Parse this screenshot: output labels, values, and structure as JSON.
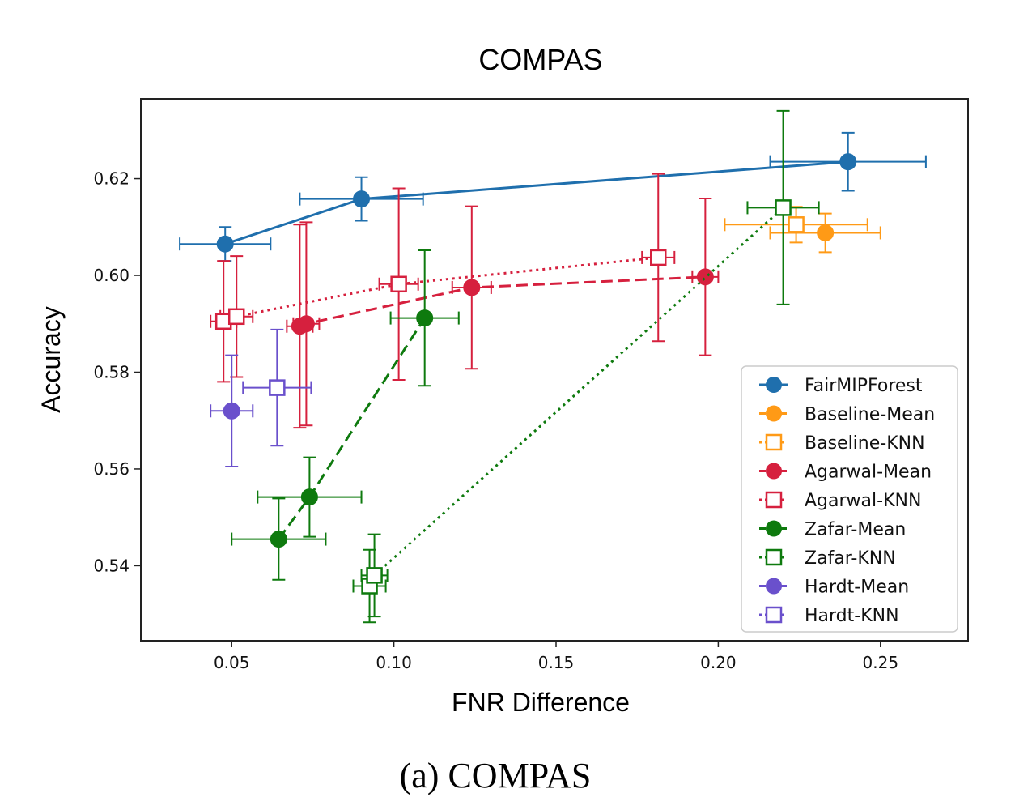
{
  "caption": "(a) COMPAS",
  "chart_data": {
    "type": "scatter",
    "title": "COMPAS",
    "xlabel": "FNR Difference",
    "ylabel": "Accuracy",
    "xlim": [
      0.022,
      0.277
    ],
    "ylim": [
      0.5245,
      0.6365
    ],
    "xticks": [
      0.05,
      0.1,
      0.15,
      0.2,
      0.25
    ],
    "xtick_labels": [
      "0.05",
      "0.10",
      "0.15",
      "0.20",
      "0.25"
    ],
    "yticks": [
      0.54,
      0.56,
      0.58,
      0.6,
      0.62
    ],
    "ytick_labels": [
      "0.54",
      "0.56",
      "0.58",
      "0.60",
      "0.62"
    ],
    "grid": false,
    "legend_position": "lower-right",
    "series": [
      {
        "name": "FairMIPForest",
        "color": "#1f6fad",
        "marker": "filled-circle",
        "line": "solid",
        "points": [
          {
            "x": 0.048,
            "y": 0.6065,
            "xerr": 0.014,
            "yerr": 0.0035
          },
          {
            "x": 0.09,
            "y": 0.6158,
            "xerr": 0.019,
            "yerr": 0.0045
          },
          {
            "x": 0.24,
            "y": 0.6235,
            "xerr": 0.024,
            "yerr": 0.006
          }
        ]
      },
      {
        "name": "Baseline-Mean",
        "color": "#ff9a16",
        "marker": "filled-circle",
        "line": "dashed",
        "points": [
          {
            "x": 0.233,
            "y": 0.6088,
            "xerr": 0.017,
            "yerr": 0.004
          }
        ]
      },
      {
        "name": "Baseline-KNN",
        "color": "#ff9a16",
        "marker": "open-square",
        "line": "dotted",
        "points": [
          {
            "x": 0.224,
            "y": 0.6105,
            "xerr": 0.022,
            "yerr": 0.0037
          }
        ]
      },
      {
        "name": "Agarwal-Mean",
        "color": "#d6203e",
        "marker": "filled-circle",
        "line": "dashed",
        "points": [
          {
            "x": 0.071,
            "y": 0.5895,
            "xerr": 0.004,
            "yerr": 0.021
          },
          {
            "x": 0.073,
            "y": 0.59,
            "xerr": 0.004,
            "yerr": 0.021
          },
          {
            "x": 0.124,
            "y": 0.5975,
            "xerr": 0.006,
            "yerr": 0.0168
          },
          {
            "x": 0.196,
            "y": 0.5997,
            "xerr": 0.004,
            "yerr": 0.0162
          }
        ]
      },
      {
        "name": "Agarwal-KNN",
        "color": "#d6203e",
        "marker": "open-square",
        "line": "dotted",
        "points": [
          {
            "x": 0.0475,
            "y": 0.5905,
            "xerr": 0.004,
            "yerr": 0.0125
          },
          {
            "x": 0.0515,
            "y": 0.5915,
            "xerr": 0.005,
            "yerr": 0.0125
          },
          {
            "x": 0.1015,
            "y": 0.5982,
            "xerr": 0.006,
            "yerr": 0.0198
          },
          {
            "x": 0.1815,
            "y": 0.6037,
            "xerr": 0.005,
            "yerr": 0.0173
          }
        ]
      },
      {
        "name": "Zafar-Mean",
        "color": "#0e7a0e",
        "marker": "filled-circle",
        "line": "dashed",
        "points": [
          {
            "x": 0.0645,
            "y": 0.5455,
            "xerr": 0.0145,
            "yerr": 0.0084
          },
          {
            "x": 0.074,
            "y": 0.5542,
            "xerr": 0.016,
            "yerr": 0.0082
          },
          {
            "x": 0.1095,
            "y": 0.5912,
            "xerr": 0.0105,
            "yerr": 0.014
          }
        ]
      },
      {
        "name": "Zafar-KNN",
        "color": "#0e7a0e",
        "marker": "open-square",
        "line": "dotted",
        "points": [
          {
            "x": 0.0925,
            "y": 0.5358,
            "xerr": 0.005,
            "yerr": 0.0075
          },
          {
            "x": 0.094,
            "y": 0.538,
            "xerr": 0.004,
            "yerr": 0.0085
          },
          {
            "x": 0.22,
            "y": 0.614,
            "xerr": 0.011,
            "yerr": 0.02
          }
        ]
      },
      {
        "name": "Hardt-Mean",
        "color": "#6a50cc",
        "marker": "filled-circle",
        "line": "dashed",
        "points": [
          {
            "x": 0.05,
            "y": 0.572,
            "xerr": 0.0065,
            "yerr": 0.0115
          }
        ]
      },
      {
        "name": "Hardt-KNN",
        "color": "#6a50cc",
        "marker": "open-square",
        "line": "dotted",
        "points": [
          {
            "x": 0.064,
            "y": 0.5768,
            "xerr": 0.0105,
            "yerr": 0.012
          }
        ]
      }
    ]
  }
}
